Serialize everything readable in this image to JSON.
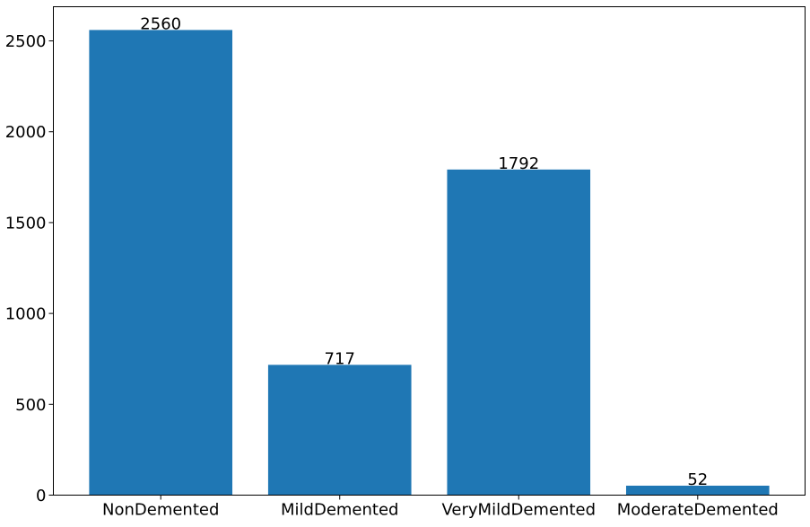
{
  "chart_data": {
    "type": "bar",
    "title": "",
    "xlabel": "",
    "ylabel": "",
    "categories": [
      "NonDemented",
      "MildDemented",
      "VeryMildDemented",
      "ModerateDemented"
    ],
    "values": [
      2560,
      717,
      1792,
      52
    ],
    "value_labels": [
      "2560",
      "717",
      "1792",
      "52"
    ],
    "ylim": [
      0,
      2688
    ],
    "yticks": [
      0,
      500,
      1000,
      1500,
      2000,
      2500
    ],
    "ytick_labels": [
      "0",
      "500",
      "1000",
      "1500",
      "2000",
      "2500"
    ],
    "bar_color": "#1f77b4",
    "grid": false,
    "legend": "none"
  }
}
